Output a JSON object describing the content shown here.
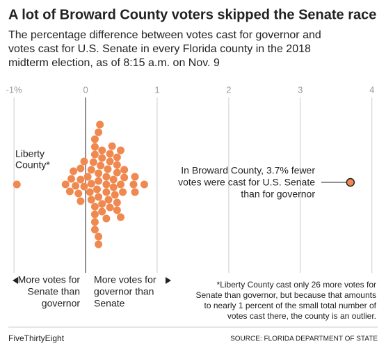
{
  "chart_data": {
    "type": "beeswarm",
    "title": "A lot of Broward County voters skipped the Senate race",
    "subtitle": [
      "The percentage difference between votes cast for governor and",
      "votes cast for U.S. Senate in every Florida county in the 2018",
      "midterm election, as of 8:15 a.m. on Nov. 9"
    ],
    "xlim": [
      -1.05,
      4.1
    ],
    "xticks": [
      {
        "value": -1,
        "label": "-1%"
      },
      0,
      1,
      2,
      3,
      4
    ],
    "grid": true,
    "color": "#f0894f",
    "values": [
      -0.96,
      0.2,
      0.13,
      0.23,
      0.13,
      0.44,
      0.11,
      0.29,
      0.39,
      0.18,
      0.32,
      0.49,
      0.13,
      0.44,
      0.08,
      0.23,
      0.39,
      0.18,
      0.44,
      -0.07,
      0.06,
      0.34,
      0.52,
      -0.1,
      0.29,
      0.54,
      -0.2,
      -0.02,
      0.18,
      0.37,
      0.67,
      -0.28,
      -0.17,
      0.03,
      0.13,
      0.29,
      0.49,
      0.69,
      0.82,
      -0.14,
      -0.02,
      0.34,
      0.54,
      0.69,
      -0.22,
      -0.07,
      0.08,
      0.23,
      0.44,
      -0.07,
      0.08,
      0.34,
      0.49,
      0.18,
      0.41,
      0.13,
      0.29,
      0.18,
      0.44,
      0.13,
      0.31,
      0.18,
      0.13,
      0.23,
      0.16,
      0.21
    ],
    "annotations": [
      {
        "lines": [
          "Liberty",
          "County*"
        ]
      },
      {
        "lines": [
          "In Broward County, 3.7% fewer",
          "votes were cast for U.S. Senate",
          "than for governor"
        ],
        "value": 3.7,
        "color": "#f0894f"
      }
    ],
    "left_label": [
      "More votes for",
      "Senate than",
      "governor"
    ],
    "right_label": [
      "More votes for",
      "governor than",
      "Senate"
    ],
    "footnote": [
      "*Liberty County cast only 26 more votes for",
      "Senate than governor, but because that amounts",
      "to nearly 1 percent of the small total number of",
      "votes cast there, the county is an outlier."
    ],
    "brand": "FiveThirtyEight",
    "source": "SOURCE: FLORIDA DEPARTMENT OF STATE"
  }
}
